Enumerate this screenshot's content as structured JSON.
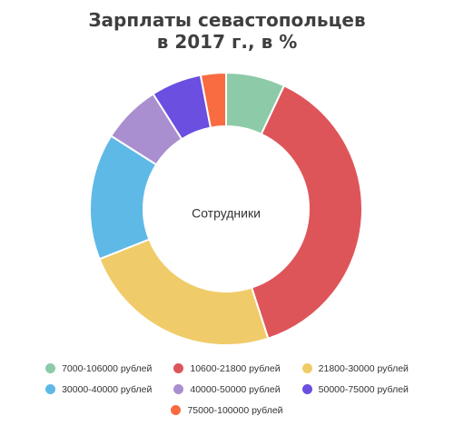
{
  "chart_data": {
    "type": "donut",
    "title_lines": [
      "Зарплаты севастопольцев",
      "в 2017 г., в %"
    ],
    "center_label": "Сотрудники",
    "series": [
      {
        "name": "7000-106000 рублей",
        "value": 7,
        "color": "#8ccaa8"
      },
      {
        "name": "10600-21800 рублей",
        "value": 38,
        "color": "#de5559"
      },
      {
        "name": "21800-30000 рублей",
        "value": 24,
        "color": "#f0cb69"
      },
      {
        "name": "30000-40000 рублей",
        "value": 15,
        "color": "#5eb9e6"
      },
      {
        "name": "40000-50000 рублей",
        "value": 7,
        "color": "#a98fcf"
      },
      {
        "name": "50000-75000 рублей",
        "value": 6,
        "color": "#6a4fe0"
      },
      {
        "name": "75000-100000 рублей",
        "value": 3,
        "color": "#f96b40"
      }
    ],
    "legend_placement": "bottom"
  }
}
